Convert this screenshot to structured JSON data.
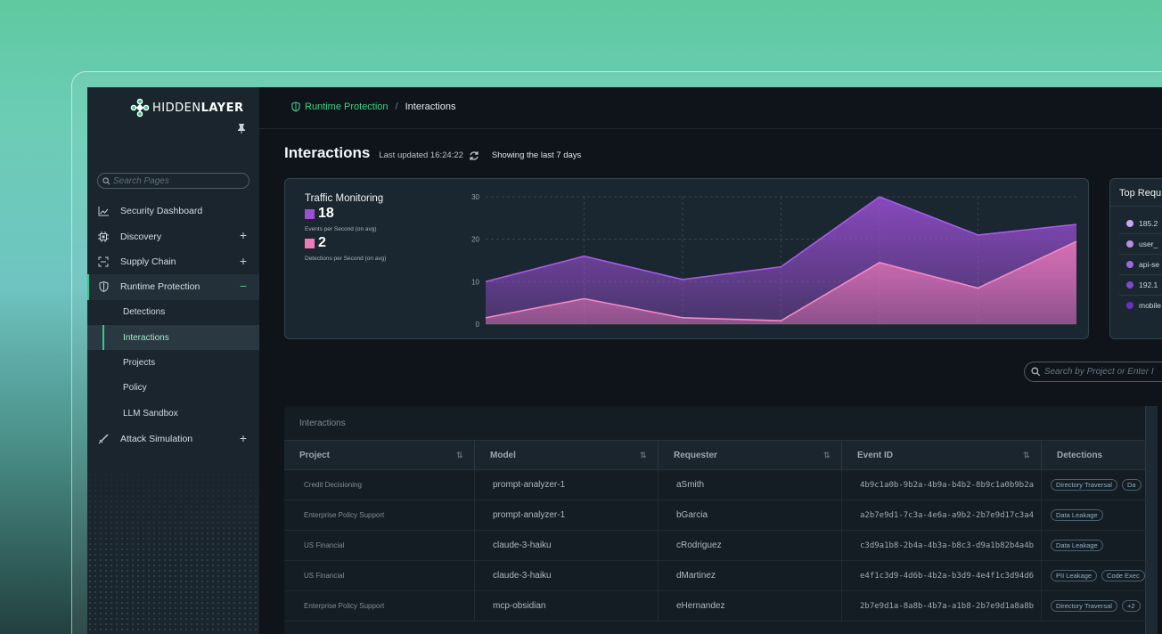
{
  "brand": {
    "logo_light": "HIDDEN",
    "logo_bold": "LAYER"
  },
  "sidebar": {
    "search_placeholder": "Search Pages",
    "items": [
      {
        "label": "Security Dashboard",
        "icon": "line-chart-icon",
        "expandable": false
      },
      {
        "label": "Discovery",
        "icon": "chip-icon",
        "expandable": true
      },
      {
        "label": "Supply Chain",
        "icon": "scan-frame-icon",
        "expandable": true
      },
      {
        "label": "Runtime Protection",
        "icon": "shield-icon",
        "expandable": true,
        "expanded": true
      },
      {
        "label": "Attack Simulation",
        "icon": "sword-icon",
        "expandable": true
      }
    ],
    "sub_items": [
      "Detections",
      "Interactions",
      "Projects",
      "Policy",
      "LLM Sandbox"
    ],
    "selected_sub": "Interactions"
  },
  "breadcrumb": {
    "parent": "Runtime Protection",
    "current": "Interactions"
  },
  "page": {
    "title": "Interactions",
    "last_updated": "Last updated 16:24:22",
    "range": "Showing the last 7 days"
  },
  "traffic": {
    "title": "Traffic Monitoring",
    "events_value": "18",
    "events_label": "Events per Second (on avg)",
    "detections_value": "2",
    "detections_label": "Detections per Second (on avg)",
    "events_color": "#9b4fd6",
    "detections_color": "#f07ab8"
  },
  "chart_data": {
    "type": "area",
    "x": [
      0,
      1,
      2,
      3,
      4,
      5,
      6
    ],
    "ylim": [
      0,
      30
    ],
    "yticks": [
      "0",
      "10",
      "20",
      "30"
    ],
    "series": [
      {
        "values": [
          10,
          16,
          10.5,
          13.5,
          30,
          21,
          23.5
        ],
        "color": "#9b4fd6"
      },
      {
        "values": [
          1.5,
          6,
          1.5,
          0.8,
          14.5,
          8.5,
          19.5
        ],
        "color": "#f07ab8"
      }
    ],
    "grid": true
  },
  "top_requesters": {
    "title": "Top Requ",
    "items": [
      {
        "label": "185.2",
        "color": "#c9a8f0"
      },
      {
        "label": "user_",
        "color": "#b98fe8"
      },
      {
        "label": "api-se",
        "color": "#9e68de"
      },
      {
        "label": "192.1",
        "color": "#8447cf"
      },
      {
        "label": "mobile",
        "color": "#6a2fc0"
      }
    ]
  },
  "search_projects": {
    "placeholder": "Search by Project or Enter I"
  },
  "table": {
    "caption": "Interactions",
    "columns": [
      "Project",
      "Model",
      "Requester",
      "Event ID",
      "Detections"
    ],
    "rows": [
      {
        "project": "Credit Decisioning",
        "model": "prompt-analyzer-1",
        "requester": "aSmith",
        "event_id": "4b9c1a0b-9b2a-4b9a-b4b2-8b9c1a0b9b2a",
        "detections": [
          "Directory Traversal",
          "Da"
        ]
      },
      {
        "project": "Enterprise Policy Support",
        "model": "prompt-analyzer-1",
        "requester": "bGarcia",
        "event_id": "a2b7e9d1-7c3a-4e6a-a9b2-2b7e9d17c3a4",
        "detections": [
          "Data Leakage"
        ]
      },
      {
        "project": "US Financial",
        "model": "claude-3-haiku",
        "requester": "cRodriguez",
        "event_id": "c3d9a1b8-2b4a-4b3a-b8c3-d9a1b82b4a4b",
        "detections": [
          "Data Leakage"
        ]
      },
      {
        "project": "US Financial",
        "model": "claude-3-haiku",
        "requester": "dMartinez",
        "event_id": "e4f1c3d9-4d6b-4b2a-b3d9-4e4f1c3d94d6",
        "detections": [
          "PII Leakage",
          "Code Exec"
        ]
      },
      {
        "project": "Enterprise Policy Support",
        "model": "mcp-obsidian",
        "requester": "eHernandez",
        "event_id": "2b7e9d1a-8a8b-4b7a-a1b8-2b7e9d1a8a8b",
        "detections": [
          "Directory Traversal",
          "+2"
        ]
      }
    ]
  }
}
